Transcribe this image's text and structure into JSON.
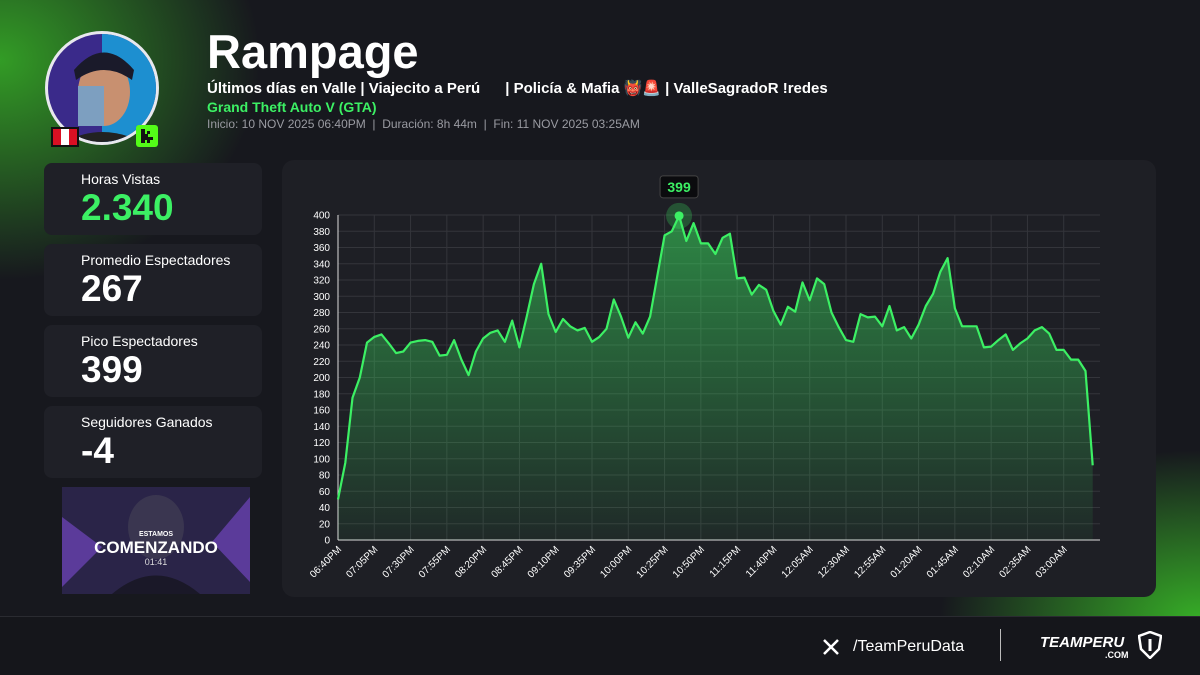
{
  "header": {
    "title": "Rampage",
    "subtitle": "Últimos días en Valle | Viajecito a Perú      | Policía & Mafia 👹🚨 | ValleSagradoR !redes",
    "game": "Grand Theft Auto V (GTA)",
    "meta": "Inicio: 10 NOV 2025 06:40PM  |  Duración: 8h 44m  |  Fin: 11 NOV 2025 03:25AM"
  },
  "stats": [
    {
      "label": "Horas Vistas",
      "value": "2.340"
    },
    {
      "label": "Promedio Espectadores",
      "value": 267
    },
    {
      "label": "Pico Espectadores",
      "value": 399
    },
    {
      "label": "Seguidores Ganados",
      "value": -4
    }
  ],
  "thumbnail": {
    "line1": "ESTAMOS",
    "line2": "COMENZANDO",
    "time": "01:41"
  },
  "footer": {
    "handle": "/TeamPeruData",
    "brand": "TEAMPERU",
    "brand_sub": ".COM"
  },
  "chart_data": {
    "type": "line",
    "color": "#3cf064",
    "grid": true,
    "ylim": [
      0,
      400
    ],
    "yticks": [
      0,
      20,
      40,
      60,
      80,
      100,
      120,
      140,
      160,
      180,
      200,
      220,
      240,
      260,
      280,
      300,
      320,
      340,
      360,
      380,
      400
    ],
    "categories": [
      "06:40PM",
      null,
      null,
      null,
      null,
      "07:05PM",
      null,
      null,
      null,
      null,
      "07:30PM",
      null,
      null,
      null,
      null,
      "07:55PM",
      null,
      null,
      null,
      null,
      "08:20PM",
      null,
      null,
      null,
      null,
      "08:45PM",
      null,
      null,
      null,
      null,
      "09:10PM",
      null,
      null,
      null,
      null,
      "09:35PM",
      null,
      null,
      null,
      null,
      "10:00PM",
      null,
      null,
      null,
      null,
      "10:25PM",
      null,
      null,
      null,
      null,
      "10:50PM",
      null,
      null,
      null,
      null,
      "11:15PM",
      null,
      null,
      null,
      null,
      "11:40PM",
      null,
      null,
      null,
      null,
      "12:05AM",
      null,
      null,
      null,
      null,
      "12:30AM",
      null,
      null,
      null,
      null,
      "12:55AM",
      null,
      null,
      null,
      null,
      "01:20AM",
      null,
      null,
      null,
      null,
      "01:45AM",
      null,
      null,
      null,
      null,
      "02:10AM",
      null,
      null,
      null,
      null,
      "02:35AM",
      null,
      null,
      null,
      null,
      "03:00AM",
      null,
      null,
      null,
      null
    ],
    "values": [
      50,
      95,
      175,
      200,
      243,
      250,
      253,
      242,
      230,
      232,
      243,
      245,
      246,
      244,
      227,
      228,
      246,
      222,
      203,
      232,
      248,
      255,
      258,
      244,
      270,
      237,
      275,
      315,
      340,
      278,
      256,
      272,
      263,
      258,
      261,
      244,
      250,
      260,
      296,
      275,
      249,
      268,
      254,
      275,
      325,
      375,
      380,
      399,
      368,
      390,
      365,
      365,
      352,
      372,
      377,
      322,
      323,
      302,
      314,
      308,
      282,
      265,
      287,
      281,
      317,
      295,
      322,
      315,
      280,
      262,
      246,
      244,
      278,
      274,
      275,
      263,
      288,
      258,
      262,
      248,
      265,
      288,
      303,
      330,
      347,
      285,
      263,
      263,
      263,
      237,
      238,
      246,
      253,
      234,
      242,
      248,
      258,
      262,
      254,
      234,
      234,
      222,
      222,
      208,
      92
    ],
    "annotation": {
      "category_index": 47,
      "value": 399
    }
  }
}
